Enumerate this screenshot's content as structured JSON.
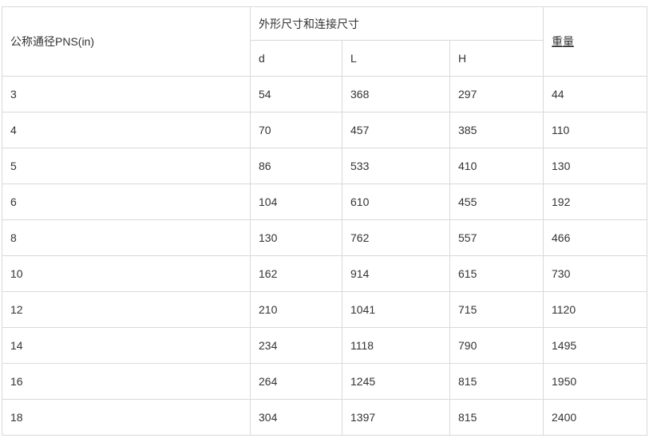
{
  "chart_data": {
    "type": "table",
    "title": "",
    "header": {
      "main": "公称通径PNS(in)",
      "group": "外形尺寸和连接尺寸",
      "sub": [
        "d",
        "L",
        "H"
      ],
      "weight": "重量"
    },
    "columns": [
      "公称通径PNS(in)",
      "d",
      "L",
      "H",
      "重量"
    ],
    "rows": [
      [
        "3",
        "54",
        "368",
        "297",
        "44"
      ],
      [
        "4",
        "70",
        "457",
        "385",
        "110"
      ],
      [
        "5",
        "86",
        "533",
        "410",
        "130"
      ],
      [
        "6",
        "104",
        "610",
        "455",
        "192"
      ],
      [
        "8",
        "130",
        "762",
        "557",
        "466"
      ],
      [
        "10",
        "162",
        "914",
        "615",
        "730"
      ],
      [
        "12",
        "210",
        "1041",
        "715",
        "1120"
      ],
      [
        "14",
        "234",
        "1118",
        "790",
        "1495"
      ],
      [
        "16",
        "264",
        "1245",
        "815",
        "1950"
      ],
      [
        "18",
        "304",
        "1397",
        "815",
        "2400"
      ]
    ]
  },
  "colors": {
    "border": "#d9d9d9",
    "text": "#333333",
    "background": "#ffffff"
  }
}
